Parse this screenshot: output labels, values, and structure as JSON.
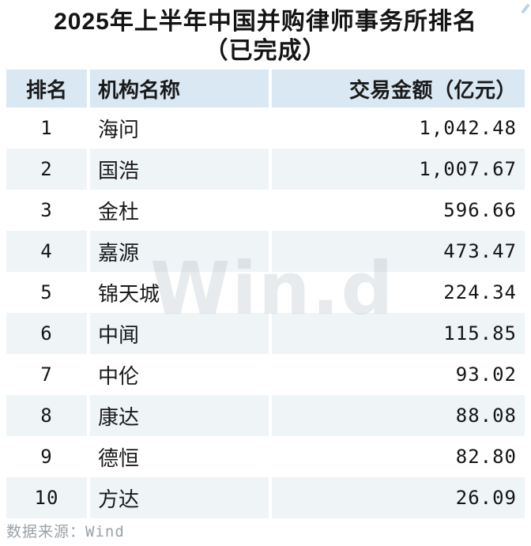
{
  "title": {
    "line1": "2025年上半年中国并购律师事务所排名",
    "line2": "（已完成）"
  },
  "table": {
    "columns": [
      "排名",
      "机构名称",
      "交易金额（亿元）"
    ],
    "rows": [
      {
        "rank": "1",
        "name": "海问",
        "value": "1,042.48"
      },
      {
        "rank": "2",
        "name": "国浩",
        "value": "1,007.67"
      },
      {
        "rank": "3",
        "name": "金杜",
        "value": "596.66"
      },
      {
        "rank": "4",
        "name": "嘉源",
        "value": "473.47"
      },
      {
        "rank": "5",
        "name": "锦天城",
        "value": "224.34"
      },
      {
        "rank": "6",
        "name": "中闻",
        "value": "115.85"
      },
      {
        "rank": "7",
        "name": "中伦",
        "value": "93.02"
      },
      {
        "rank": "8",
        "name": "康达",
        "value": "88.08"
      },
      {
        "rank": "9",
        "name": "德恒",
        "value": "82.80"
      },
      {
        "rank": "10",
        "name": "方达",
        "value": "26.09"
      }
    ]
  },
  "watermark": "Win.d",
  "footer": {
    "source_label": "数据来源：Wind"
  },
  "colors": {
    "header_bg": "#d9e8f2",
    "stripe_bg": "#eff4f7",
    "text": "#1a1a1a",
    "muted_text": "#9aa1a7",
    "watermark": "#e2e6e9",
    "corner_mark": "#b5d6e9"
  },
  "chart_data": {
    "type": "table",
    "title": "2025年上半年中国并购律师事务所排名（已完成）",
    "columns": [
      "排名",
      "机构名称",
      "交易金额（亿元）"
    ],
    "rows": [
      [
        1,
        "海问",
        1042.48
      ],
      [
        2,
        "国浩",
        1007.67
      ],
      [
        3,
        "金杜",
        596.66
      ],
      [
        4,
        "嘉源",
        473.47
      ],
      [
        5,
        "锦天城",
        224.34
      ],
      [
        6,
        "中闻",
        115.85
      ],
      [
        7,
        "中伦",
        93.02
      ],
      [
        8,
        "康达",
        88.08
      ],
      [
        9,
        "德恒",
        82.8
      ],
      [
        10,
        "方达",
        26.09
      ]
    ],
    "source": "Wind"
  }
}
